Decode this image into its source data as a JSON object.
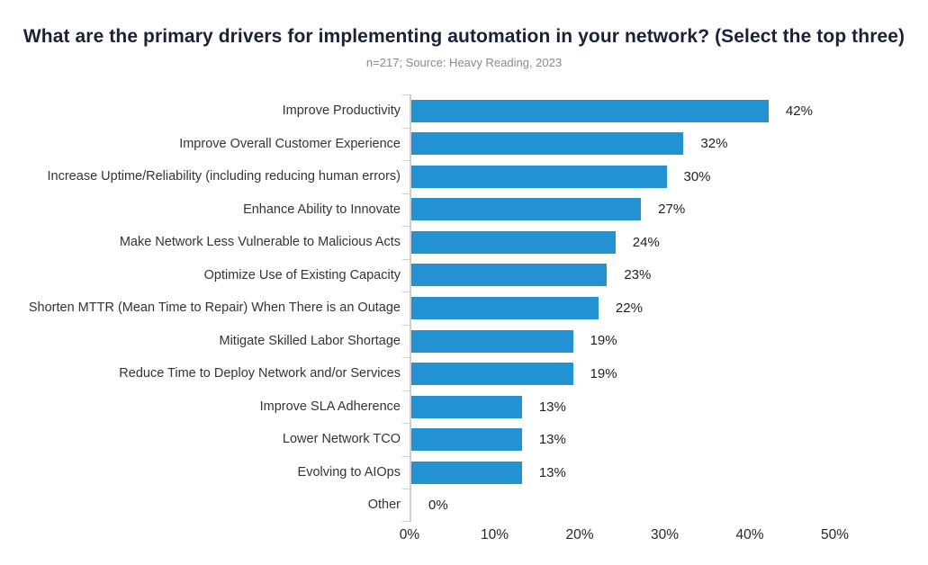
{
  "title": "What are the primary drivers for implementing automation in your network? (Select the top three)",
  "subtitle": "n=217; Source: Heavy Reading, 2023",
  "colors": {
    "bar": "#2292D2",
    "title_text": "#1A2235",
    "subtitle_text": "#8A8A8A",
    "category_text": "#33333A",
    "value_text": "#1F1F24",
    "axis_line": "#CBCED3",
    "x_tick_text": "#26262B"
  },
  "chart_data": {
    "type": "bar",
    "orientation": "horizontal",
    "title": "What are the primary drivers for implementing automation in your network? (Select the top three)",
    "subtitle": "n=217; Source: Heavy Reading, 2023",
    "categories": [
      "Improve Productivity",
      "Improve Overall Customer Experience",
      "Increase Uptime/Reliability (including reducing human errors)",
      "Enhance Ability to Innovate",
      "Make Network Less Vulnerable to Malicious Acts",
      "Optimize Use of Existing Capacity",
      "Shorten MTTR (Mean Time to Repair) When There is an Outage",
      "Mitigate Skilled Labor Shortage",
      "Reduce Time to Deploy Network and/or Services",
      "Improve SLA Adherence",
      "Lower Network TCO",
      "Evolving to AIOps",
      "Other"
    ],
    "values": [
      42,
      32,
      30,
      27,
      24,
      23,
      22,
      19,
      19,
      13,
      13,
      13,
      0
    ],
    "value_labels": [
      "42%",
      "32%",
      "30%",
      "27%",
      "24%",
      "23%",
      "22%",
      "19%",
      "19%",
      "13%",
      "13%",
      "13%",
      "0%"
    ],
    "xlabel": "",
    "ylabel": "",
    "xlim": [
      0,
      50
    ],
    "x_ticks": [
      "0%",
      "10%",
      "20%",
      "30%",
      "40%",
      "50%"
    ],
    "x_tick_values": [
      0,
      10,
      20,
      30,
      40,
      50
    ],
    "grid": false,
    "legend": false,
    "bar_color": "#2292D2"
  }
}
